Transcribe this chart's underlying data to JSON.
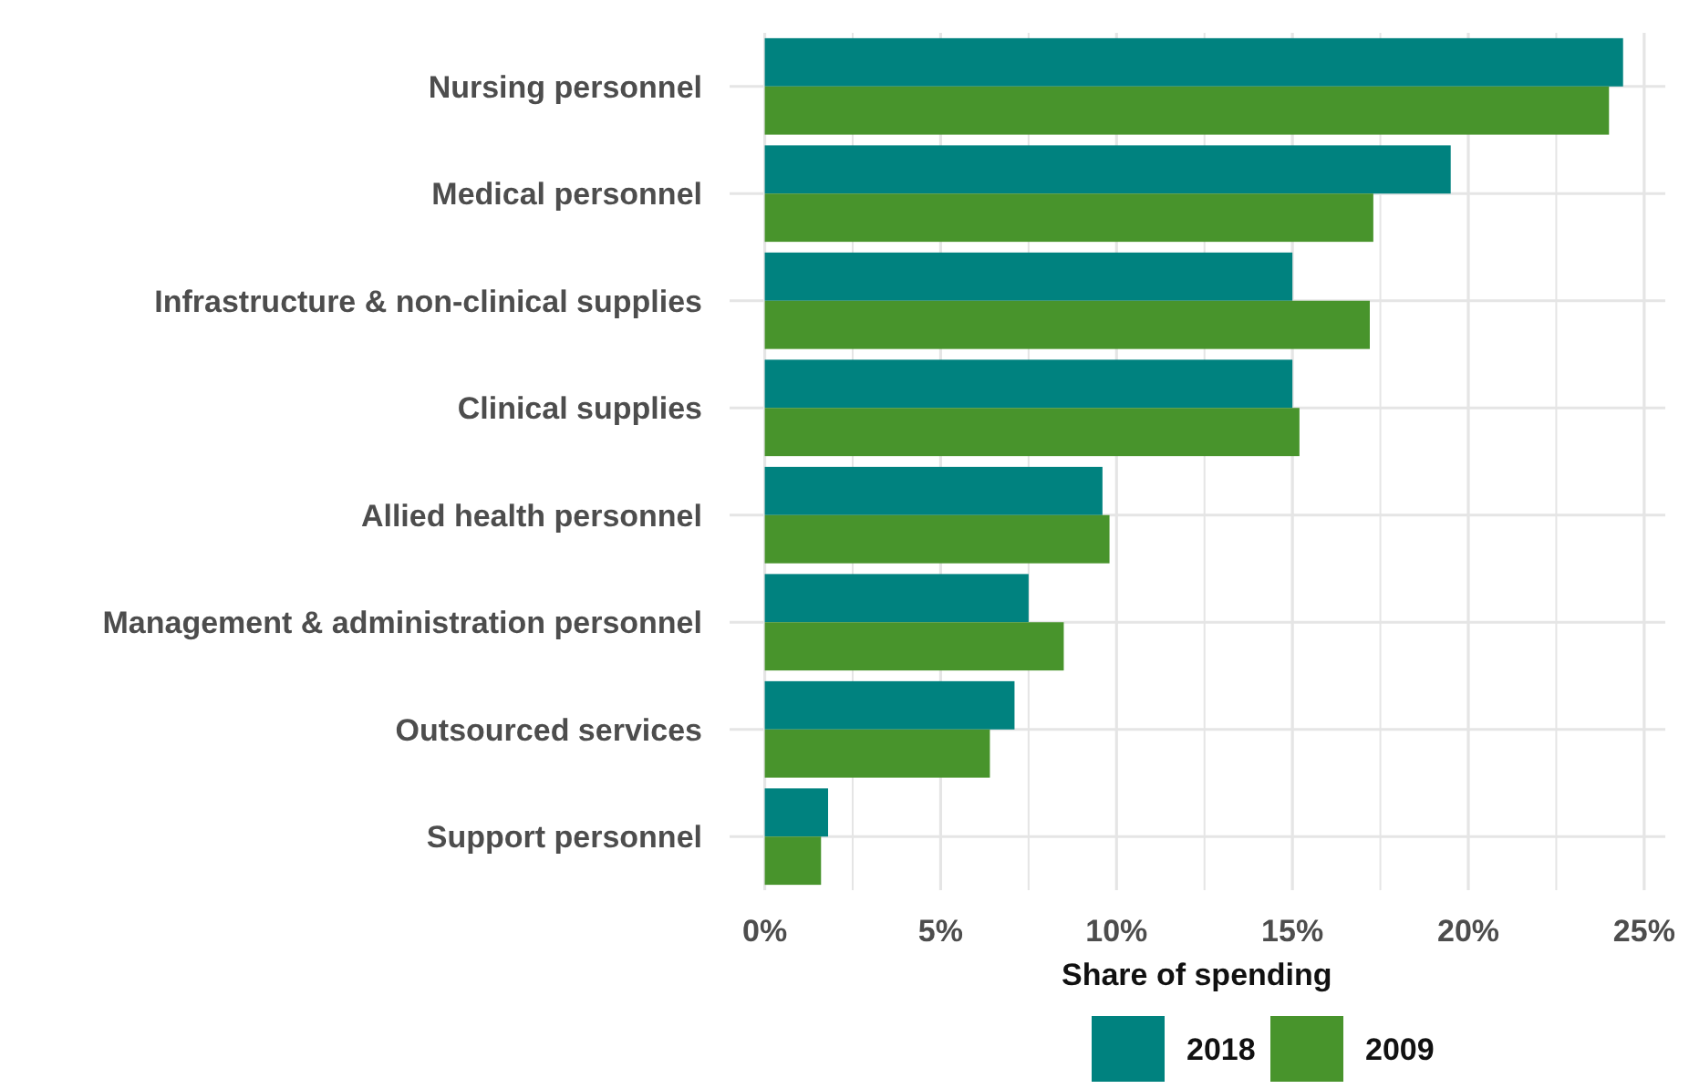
{
  "chart_data": {
    "type": "bar",
    "orientation": "horizontal",
    "xlabel": "Share of spending",
    "categories": [
      "Nursing personnel",
      "Medical personnel",
      "Infrastructure & non-clinical supplies",
      "Clinical supplies",
      "Allied health personnel",
      "Management & administration personnel",
      "Outsourced services",
      "Support personnel"
    ],
    "series": [
      {
        "name": "2018",
        "color": "#00827f",
        "values": [
          24.4,
          19.5,
          15.0,
          15.0,
          9.6,
          7.5,
          7.1,
          1.8
        ]
      },
      {
        "name": "2009",
        "color": "#48942c",
        "values": [
          24.0,
          17.3,
          17.2,
          15.2,
          9.8,
          8.5,
          6.4,
          1.6
        ]
      }
    ],
    "xlim": [
      -1,
      25.6
    ],
    "xticks": [
      {
        "value": 0,
        "label": "0%"
      },
      {
        "value": 2.5,
        "label": null
      },
      {
        "value": 5,
        "label": "5%"
      },
      {
        "value": 7.5,
        "label": null
      },
      {
        "value": 10,
        "label": "10%"
      },
      {
        "value": 12.5,
        "label": null
      },
      {
        "value": 15,
        "label": "15%"
      },
      {
        "value": 17.5,
        "label": null
      },
      {
        "value": 20,
        "label": "20%"
      },
      {
        "value": 22.5,
        "label": null
      },
      {
        "value": 25,
        "label": "25%"
      }
    ],
    "grid": true,
    "legend": "bottom"
  }
}
